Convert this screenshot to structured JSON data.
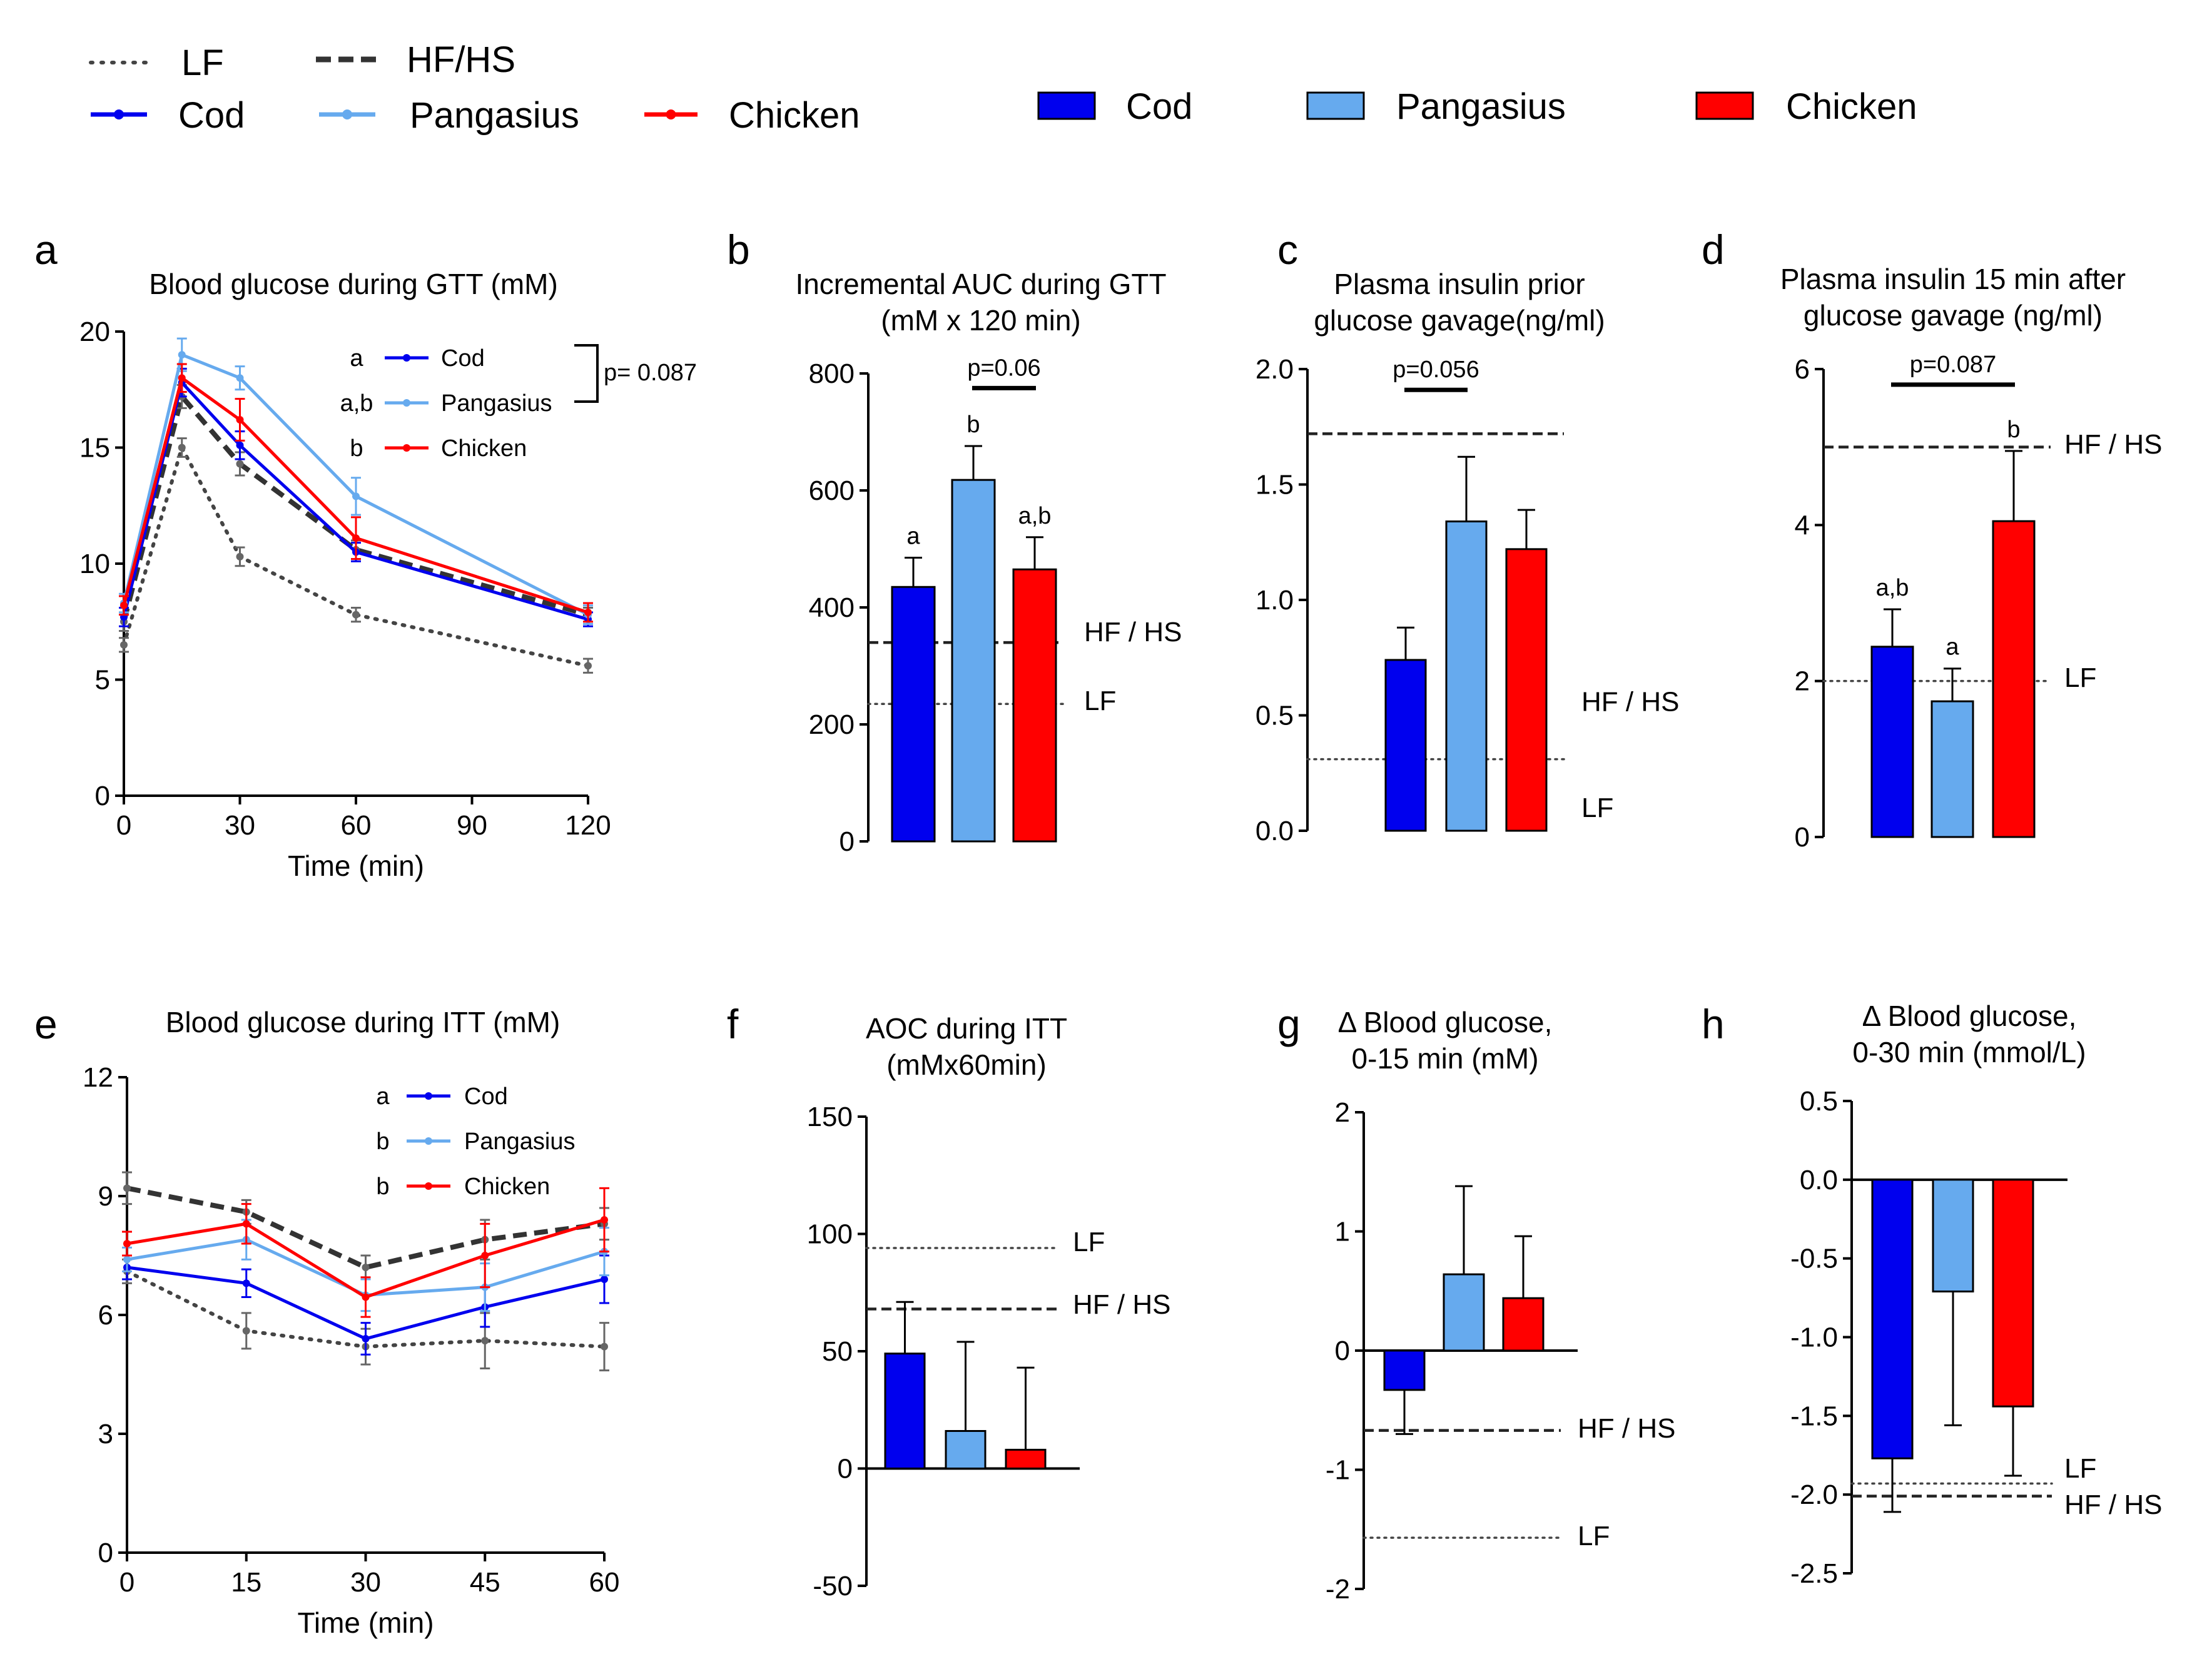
{
  "colors": {
    "Cod": "#0000ee",
    "Pangasius": "#66aaee",
    "Chicken": "#ff0000",
    "ref": "#333333",
    "LF": "#444444"
  },
  "legend": {
    "lines": [
      {
        "label": "LF",
        "style": "dotted"
      },
      {
        "label": "HF/HS",
        "style": "dashed"
      },
      {
        "label": "Cod",
        "style": "Cod"
      },
      {
        "label": "Pangasius",
        "style": "Pangasius"
      },
      {
        "label": "Chicken",
        "style": "Chicken"
      }
    ],
    "bars": [
      "Cod",
      "Pangasius",
      "Chicken"
    ]
  },
  "chart_data": [
    {
      "id": "a",
      "type": "line",
      "title": "Blood glucose during GTT (mM)",
      "xlabel": "Time (min)",
      "ylabel": "",
      "xlim": [
        0,
        120
      ],
      "ylim": [
        0,
        20
      ],
      "xticks": [
        0,
        30,
        60,
        90,
        120
      ],
      "yticks": [
        0,
        5,
        10,
        15,
        20
      ],
      "x": [
        0,
        15,
        30,
        60,
        120
      ],
      "series": [
        {
          "name": "LF",
          "style": "dotted",
          "values": [
            6.5,
            15.0,
            10.3,
            7.8,
            5.6
          ],
          "err": [
            0.3,
            0.4,
            0.4,
            0.3,
            0.3
          ]
        },
        {
          "name": "HF/HS",
          "style": "dashed",
          "values": [
            7.5,
            17.2,
            14.3,
            10.6,
            7.8
          ],
          "err": [
            0.4,
            0.5,
            0.5,
            0.4,
            0.3
          ]
        },
        {
          "name": "Cod",
          "style": "Cod",
          "values": [
            7.7,
            17.8,
            15.1,
            10.5,
            7.6
          ],
          "err": [
            0.4,
            0.6,
            0.6,
            0.4,
            0.3
          ]
        },
        {
          "name": "Pangasius",
          "style": "Pangasius",
          "values": [
            8.3,
            19.0,
            18.0,
            12.9,
            7.8
          ],
          "err": [
            0.4,
            0.7,
            0.5,
            0.8,
            0.4
          ]
        },
        {
          "name": "Chicken",
          "style": "Chicken",
          "values": [
            8.2,
            18.0,
            16.2,
            11.1,
            7.9
          ],
          "err": [
            0.4,
            0.6,
            0.9,
            0.9,
            0.4
          ]
        }
      ],
      "inset_legend": [
        {
          "letter": "a",
          "name": "Cod",
          "style": "Cod"
        },
        {
          "letter": "a,b",
          "name": "Pangasius",
          "style": "Pangasius"
        },
        {
          "letter": "b",
          "name": "Chicken",
          "style": "Chicken"
        }
      ],
      "bracket_label": "p= 0.087"
    },
    {
      "id": "b",
      "type": "bar",
      "title": [
        "Incremental AUC during GTT",
        "(mM x 120 min)"
      ],
      "ylim": [
        0,
        800
      ],
      "yticks": [
        0,
        200,
        400,
        600,
        800
      ],
      "categories": [
        "Cod",
        "Pangasius",
        "Chicken"
      ],
      "values": [
        435,
        618,
        465
      ],
      "err": [
        50,
        58,
        55
      ],
      "letters": [
        "a",
        "b",
        "a,b"
      ],
      "refs": [
        {
          "label": "HF / HS",
          "value": 340,
          "style": "dashed"
        },
        {
          "label": "LF",
          "value": 235,
          "style": "dotted"
        }
      ],
      "sig": {
        "label": "p=0.06",
        "from": 1,
        "to": 2,
        "value": 775
      }
    },
    {
      "id": "c",
      "type": "bar",
      "title": [
        "Plasma insulin prior",
        "glucose gavage(ng/ml)"
      ],
      "ylim": [
        0,
        2.0
      ],
      "yticks": [
        "0.0",
        "0.5",
        "1.0",
        "1.5",
        "2.0"
      ],
      "categories": [
        "Cod",
        "Pangasius",
        "Chicken"
      ],
      "values": [
        0.74,
        1.34,
        1.22
      ],
      "err": [
        0.14,
        0.28,
        0.17
      ],
      "refs": [
        {
          "value": 1.72,
          "style": "dashed"
        },
        {
          "value": 0.31,
          "style": "dotted"
        }
      ],
      "ref_labels": [
        {
          "label": "HF / HS",
          "at": 0.56
        },
        {
          "label": "LF",
          "at": 0.1
        }
      ],
      "sig": {
        "label": "p=0.056",
        "from": 0,
        "to": 1,
        "value": 1.91
      }
    },
    {
      "id": "d",
      "type": "bar",
      "title": [
        "Plasma insulin 15 min after",
        "glucose gavage (ng/ml)"
      ],
      "ylim": [
        0,
        6
      ],
      "yticks": [
        0,
        2,
        4,
        6
      ],
      "categories": [
        "Cod",
        "Pangasius",
        "Chicken"
      ],
      "values": [
        2.44,
        1.74,
        4.05
      ],
      "err": [
        0.48,
        0.42,
        0.9
      ],
      "letters": [
        "a,b",
        "a",
        "b"
      ],
      "refs": [
        {
          "label": "HF / HS",
          "value": 5.0,
          "style": "dashed"
        },
        {
          "label": "LF",
          "value": 2.0,
          "style": "dotted"
        }
      ],
      "sig": {
        "label": "p=0.087",
        "from": 0,
        "to": 2,
        "value": 5.8
      }
    },
    {
      "id": "e",
      "type": "line",
      "title": "Blood glucose during ITT (mM)",
      "xlabel": "Time (min)",
      "ylabel": "",
      "xlim": [
        0,
        60
      ],
      "ylim": [
        0,
        12
      ],
      "xticks": [
        0,
        15,
        30,
        45,
        60
      ],
      "yticks": [
        0,
        3,
        6,
        9,
        12
      ],
      "x": [
        0,
        15,
        30,
        45,
        60
      ],
      "series": [
        {
          "name": "LF",
          "style": "dotted",
          "values": [
            7.1,
            5.6,
            5.2,
            5.35,
            5.2
          ],
          "err": [
            0.3,
            0.45,
            0.45,
            0.7,
            0.6
          ]
        },
        {
          "name": "HF/HS",
          "style": "dashed",
          "values": [
            9.2,
            8.6,
            7.2,
            7.9,
            8.3
          ],
          "err": [
            0.4,
            0.3,
            0.3,
            0.5,
            0.4
          ]
        },
        {
          "name": "Cod",
          "style": "Cod",
          "values": [
            7.2,
            6.8,
            5.4,
            6.2,
            6.9
          ],
          "err": [
            0.3,
            0.35,
            0.4,
            0.5,
            0.6
          ]
        },
        {
          "name": "Pangasius",
          "style": "Pangasius",
          "values": [
            7.4,
            7.9,
            6.5,
            6.7,
            7.6
          ],
          "err": [
            0.3,
            0.5,
            0.4,
            0.6,
            0.6
          ]
        },
        {
          "name": "Chicken",
          "style": "Chicken",
          "values": [
            7.8,
            8.3,
            6.45,
            7.5,
            8.4
          ],
          "err": [
            0.3,
            0.5,
            0.5,
            0.8,
            0.8
          ]
        }
      ],
      "inset_legend": [
        {
          "letter": "a",
          "name": "Cod",
          "style": "Cod"
        },
        {
          "letter": "b",
          "name": "Pangasius",
          "style": "Pangasius"
        },
        {
          "letter": "b",
          "name": "Chicken",
          "style": "Chicken"
        }
      ]
    },
    {
      "id": "f",
      "type": "bar",
      "title": [
        "AOC during ITT",
        "(mMx60min)"
      ],
      "ylim": [
        -50,
        150
      ],
      "yticks": [
        -50,
        0,
        50,
        100,
        150
      ],
      "categories": [
        "Cod",
        "Pangasius",
        "Chicken"
      ],
      "values": [
        49,
        16,
        8
      ],
      "err": [
        22,
        38,
        35
      ],
      "refs": [
        {
          "label": "LF",
          "value": 94,
          "style": "dotted"
        },
        {
          "label": "HF / HS",
          "value": 68,
          "style": "dashed"
        }
      ]
    },
    {
      "id": "g",
      "type": "bar",
      "title": [
        "Δ Blood glucose,",
        "0-15 min (mM)"
      ],
      "ylim": [
        -2,
        2
      ],
      "yticks": [
        -2,
        -1,
        0,
        1,
        2
      ],
      "categories": [
        "Cod",
        "Pangasius",
        "Chicken"
      ],
      "values": [
        -0.33,
        0.64,
        0.44
      ],
      "err": [
        0.37,
        0.74,
        0.52
      ],
      "refs": [
        {
          "label": "HF / HS",
          "value": -0.67,
          "style": "dashed"
        },
        {
          "label": "LF",
          "value": -1.57,
          "style": "dotted"
        }
      ]
    },
    {
      "id": "h",
      "type": "bar",
      "title": [
        "Δ Blood glucose,",
        "0-30 min (mmol/L)"
      ],
      "ylim": [
        -2.5,
        0.5
      ],
      "yticks": [
        "-2.5",
        "-2.0",
        "-1.5",
        "-1.0",
        "-0.5",
        "0.0",
        "0.5"
      ],
      "categories": [
        "Cod",
        "Pangasius",
        "Chicken"
      ],
      "values": [
        -1.77,
        -0.71,
        -1.44
      ],
      "err": [
        0.34,
        0.85,
        0.44
      ],
      "refs": [
        {
          "label": "LF",
          "value": -1.93,
          "style": "dotted"
        },
        {
          "label": "HF / HS",
          "value": -2.01,
          "style": "dashed"
        }
      ]
    }
  ]
}
